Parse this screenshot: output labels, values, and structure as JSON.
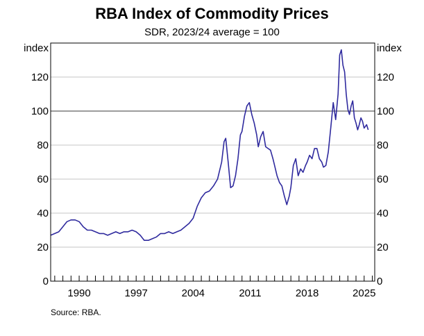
{
  "chart_data": {
    "type": "line",
    "title": "RBA Index of Commodity Prices",
    "subtitle": "SDR, 2023/24 average = 100",
    "ylabel_left": "index",
    "ylabel_right": "index",
    "source": "Source:   RBA.",
    "ylim": [
      0,
      140
    ],
    "yticks": [
      0,
      20,
      40,
      60,
      80,
      100,
      120
    ],
    "xlim": [
      1986.5,
      2026.3
    ],
    "xticks": [
      {
        "value": 1990,
        "label": "1990"
      },
      {
        "value": 1997,
        "label": "1997"
      },
      {
        "value": 2004,
        "label": "2004"
      },
      {
        "value": 2011,
        "label": "2011"
      },
      {
        "value": 2018,
        "label": "2018"
      },
      {
        "value": 2025,
        "label": "2025"
      }
    ],
    "reference_line": 100,
    "line_color": "#2f2a9e",
    "series": [
      {
        "name": "RBA Index of Commodity Prices",
        "x": [
          1986.5,
          1987.0,
          1987.5,
          1988.0,
          1988.5,
          1989.0,
          1989.5,
          1990.0,
          1990.5,
          1991.0,
          1991.5,
          1992.0,
          1992.5,
          1993.0,
          1993.5,
          1994.0,
          1994.5,
          1995.0,
          1995.5,
          1996.0,
          1996.5,
          1997.0,
          1997.5,
          1998.0,
          1998.5,
          1999.0,
          1999.5,
          2000.0,
          2000.5,
          2001.0,
          2001.5,
          2002.0,
          2002.5,
          2003.0,
          2003.5,
          2004.0,
          2004.5,
          2005.0,
          2005.5,
          2006.0,
          2006.5,
          2007.0,
          2007.5,
          2007.8,
          2008.0,
          2008.3,
          2008.6,
          2008.9,
          2009.2,
          2009.5,
          2009.8,
          2010.0,
          2010.3,
          2010.6,
          2010.9,
          2011.2,
          2011.5,
          2011.8,
          2012.0,
          2012.3,
          2012.6,
          2012.9,
          2013.2,
          2013.5,
          2013.8,
          2014.0,
          2014.3,
          2014.6,
          2014.9,
          2015.2,
          2015.5,
          2015.8,
          2016.0,
          2016.3,
          2016.6,
          2016.9,
          2017.2,
          2017.5,
          2017.8,
          2018.0,
          2018.3,
          2018.6,
          2018.9,
          2019.2,
          2019.5,
          2019.8,
          2020.0,
          2020.3,
          2020.6,
          2020.9,
          2021.2,
          2021.5,
          2021.8,
          2022.0,
          2022.2,
          2022.4,
          2022.6,
          2022.8,
          2023.0,
          2023.2,
          2023.4,
          2023.6,
          2023.8,
          2024.0,
          2024.2,
          2024.4,
          2024.6,
          2024.8,
          2025.0,
          2025.3,
          2025.5
        ],
        "values": [
          27,
          28,
          29,
          32,
          35,
          36,
          36,
          35,
          32,
          30,
          30,
          29,
          28,
          28,
          27,
          28,
          29,
          28,
          29,
          29,
          30,
          29,
          27,
          24,
          24,
          25,
          26,
          28,
          28,
          29,
          28,
          29,
          30,
          32,
          34,
          37,
          44,
          49,
          52,
          53,
          56,
          60,
          70,
          82,
          84,
          70,
          55,
          56,
          62,
          72,
          86,
          88,
          97,
          103,
          105,
          98,
          93,
          86,
          79,
          85,
          88,
          79,
          78,
          77,
          72,
          68,
          62,
          58,
          56,
          50,
          45,
          50,
          55,
          68,
          72,
          62,
          66,
          64,
          68,
          70,
          74,
          72,
          78,
          78,
          72,
          70,
          67,
          68,
          76,
          90,
          105,
          95,
          110,
          133,
          136,
          127,
          123,
          110,
          101,
          98,
          103,
          106,
          96,
          93,
          89,
          92,
          96,
          94,
          90,
          92,
          89
        ]
      }
    ]
  }
}
